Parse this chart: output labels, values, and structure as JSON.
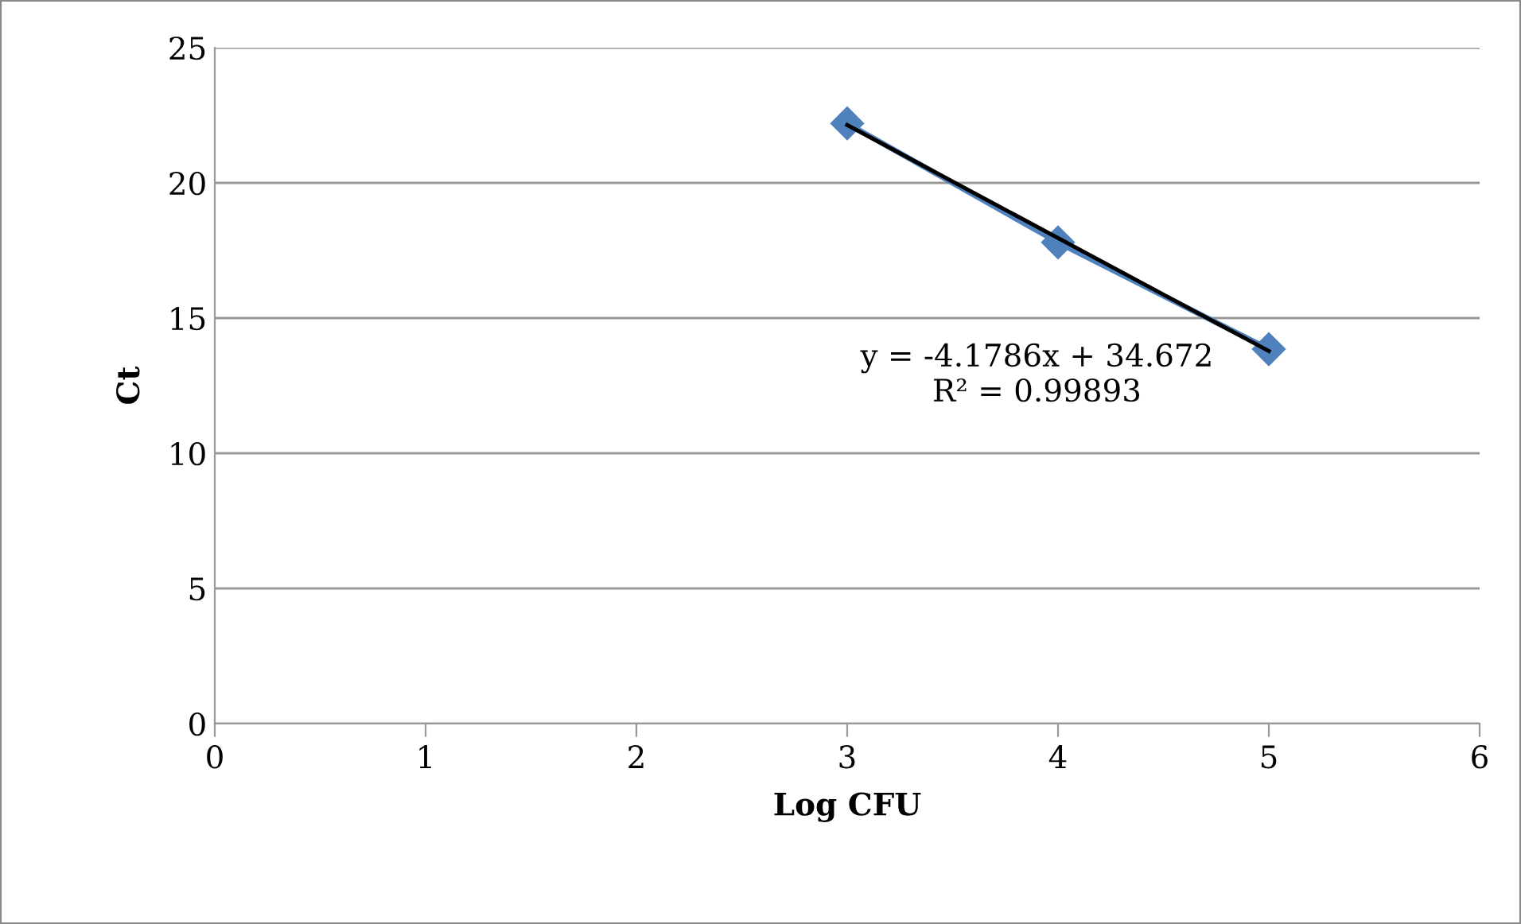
{
  "chart_data": {
    "type": "line",
    "xlabel": "Log CFU",
    "ylabel": "Ct",
    "series": [
      {
        "color": "#4f81bd",
        "x": [
          3,
          4,
          5
        ],
        "values": [
          22.2,
          17.8,
          13.85
        ],
        "marker": "diamond"
      },
      {
        "color": "#000000",
        "x": [
          3,
          5
        ],
        "values": [
          22.14,
          13.78
        ],
        "marker": "none"
      }
    ],
    "annotations": [
      "y = -4.1786x + 34.672\nR² = 0.99893"
    ],
    "xlim": [
      0,
      6
    ],
    "xticks": [
      0,
      1,
      2,
      3,
      4,
      5,
      6
    ],
    "ylim": [
      0,
      25
    ],
    "yticks": [
      0,
      5,
      10,
      15,
      20,
      25
    ],
    "grid": "y",
    "legend": false
  }
}
